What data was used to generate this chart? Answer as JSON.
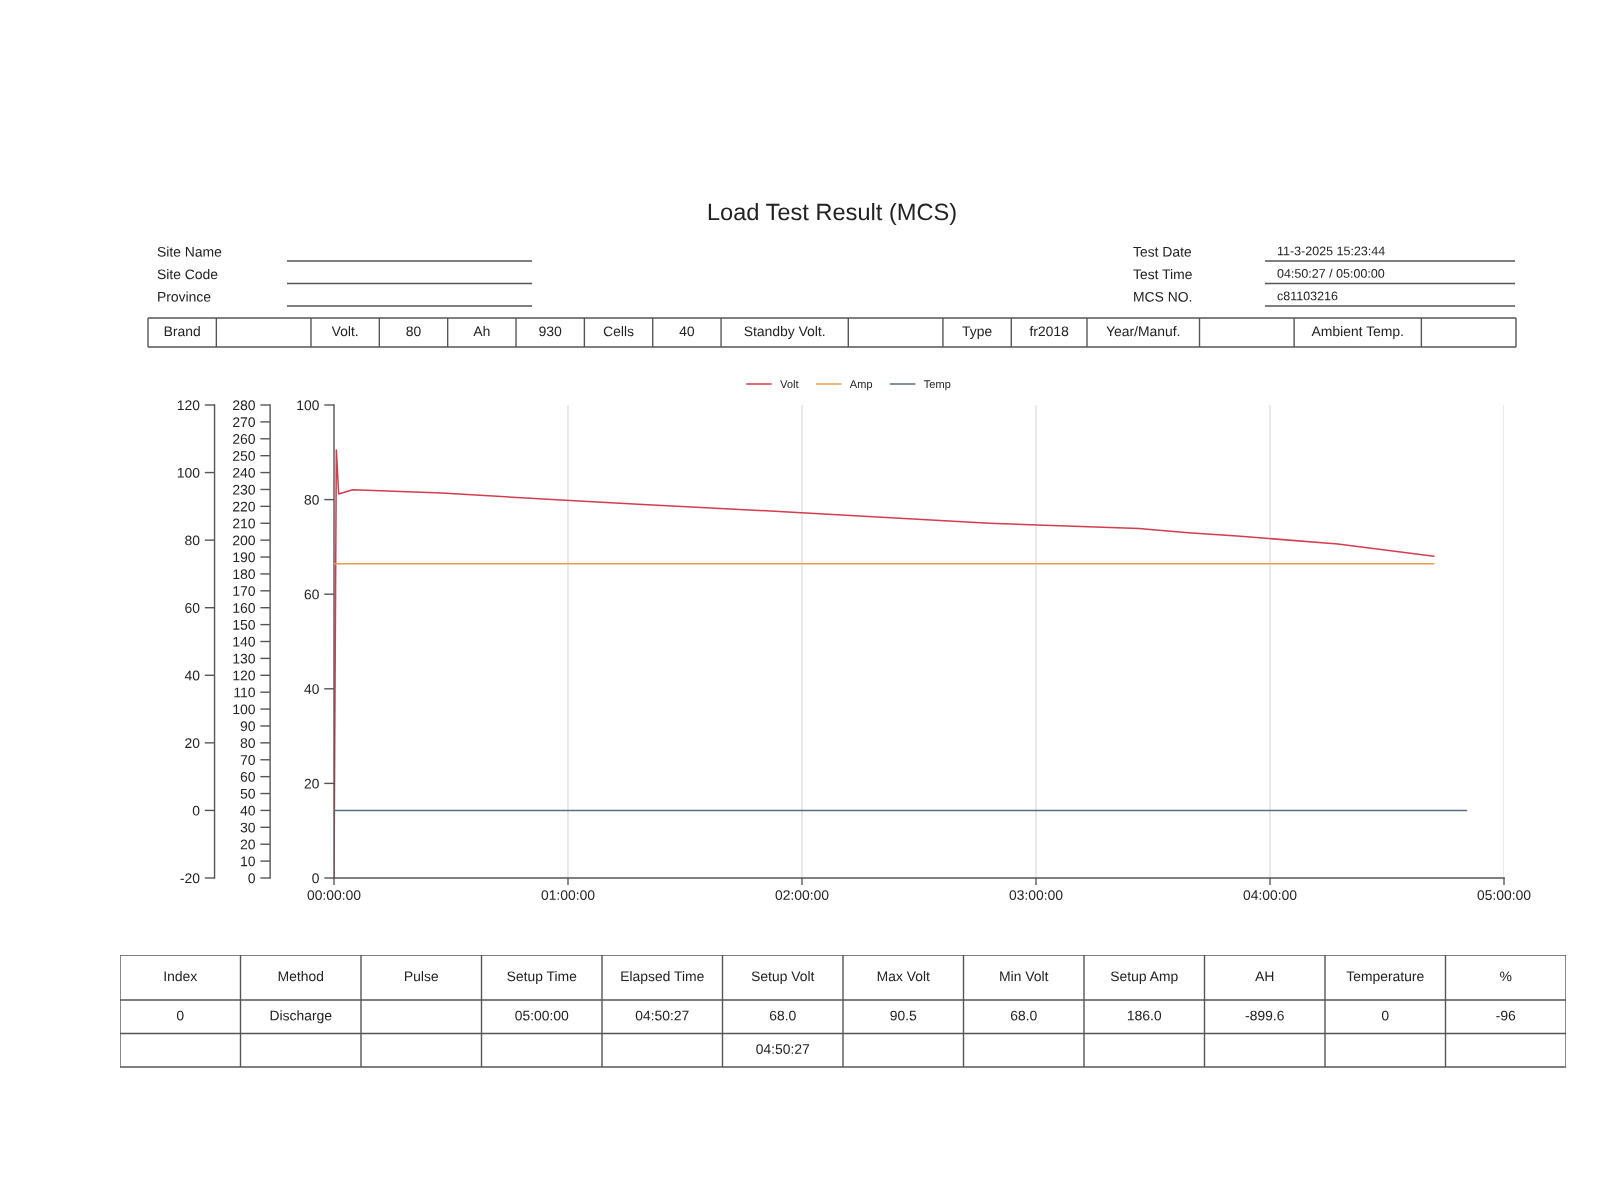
{
  "chart_data": [
    {
      "type": "other",
      "title": "Load Test Result (MCS)",
      "y_categories": [
        "Site Name",
        "Site Code",
        "Province"
      ],
      "y2_categories": [
        "Test Date",
        "Test Time",
        "MCS NO."
      ],
      "cell_labels": [
        [
          null,
          "11-3-2025 15:23:44"
        ],
        [
          null,
          "04:50:27 / 05:00:00"
        ],
        [
          null,
          "c81103216"
        ]
      ],
      "categories": [
        "Brand",
        null,
        "Volt.",
        "80",
        "Ah",
        "930",
        "Cells",
        "40",
        "Standby Volt.",
        null,
        "Type",
        "fr2018",
        "Year/Manuf.",
        null,
        "Ambient Temp.",
        null
      ]
    },
    {
      "type": "line",
      "legend": "top",
      "grid": "x",
      "xlim": [
        0,
        5
      ],
      "xticks": [
        {
          "value": 0,
          "label": "00:00:00"
        },
        {
          "value": 1,
          "label": "01:00:00"
        },
        {
          "value": 2,
          "label": "02:00:00"
        },
        {
          "value": 3,
          "label": "03:00:00"
        },
        {
          "value": 4,
          "label": "04:00:00"
        },
        {
          "value": 5,
          "label": "05:00:00"
        }
      ],
      "ylim": [
        0,
        100
      ],
      "yticks": [
        0,
        20,
        40,
        60,
        80,
        100
      ],
      "y2lim": [
        0,
        280
      ],
      "y2ticks": [
        0,
        10,
        20,
        30,
        40,
        50,
        60,
        70,
        80,
        90,
        100,
        110,
        120,
        130,
        140,
        150,
        160,
        170,
        180,
        190,
        200,
        210,
        220,
        230,
        240,
        250,
        260,
        270,
        280
      ],
      "series": [
        {
          "name": "Volt",
          "color": "#d43d4e",
          "x": [
            0,
            0.01,
            0.02,
            0.08,
            0.46,
            0.97,
            1.3,
            1.94,
            2.8,
            3.44,
            3.65,
            3.86,
            4.29,
            4.5,
            4.7
          ],
          "values": [
            0,
            90.5,
            81.2,
            82.1,
            81.4,
            79.9,
            79.0,
            77.4,
            75.0,
            73.9,
            73.0,
            72.3,
            70.6,
            69.3,
            68.0
          ]
        },
        {
          "name": "Amp",
          "color": "#e3a048",
          "axis": "y2",
          "x": [
            0,
            4.7
          ],
          "values": [
            186,
            186
          ]
        }
      ]
    },
    {
      "type": "line",
      "legend": "top",
      "tick_labels": "y",
      "xlim": [
        0,
        5
      ],
      "ylim": [
        -20,
        120
      ],
      "yticks": [
        -20,
        0,
        20,
        40,
        60,
        80,
        100,
        120
      ],
      "series": [
        {
          "name": "Temp",
          "color": "#5d6d80",
          "x": [
            0,
            4.84
          ],
          "values": [
            0,
            0
          ]
        }
      ]
    },
    {
      "type": "other",
      "categories": [
        "Index",
        "Method",
        "Pulse",
        "Setup Time",
        "Elapsed Time",
        "Setup Volt",
        "Max Volt",
        "Min Volt",
        "Setup Amp",
        "AH",
        "Temperature",
        "%"
      ],
      "cell_labels": [
        [
          "0",
          "Discharge",
          null,
          "05:00:00",
          "04:50:27",
          "68.0",
          "90.5",
          "68.0",
          "186.0",
          "-899.6",
          "0",
          "-96"
        ],
        [
          null,
          null,
          null,
          null,
          null,
          "04:50:27",
          null,
          null,
          null,
          null,
          null,
          null
        ]
      ]
    }
  ]
}
